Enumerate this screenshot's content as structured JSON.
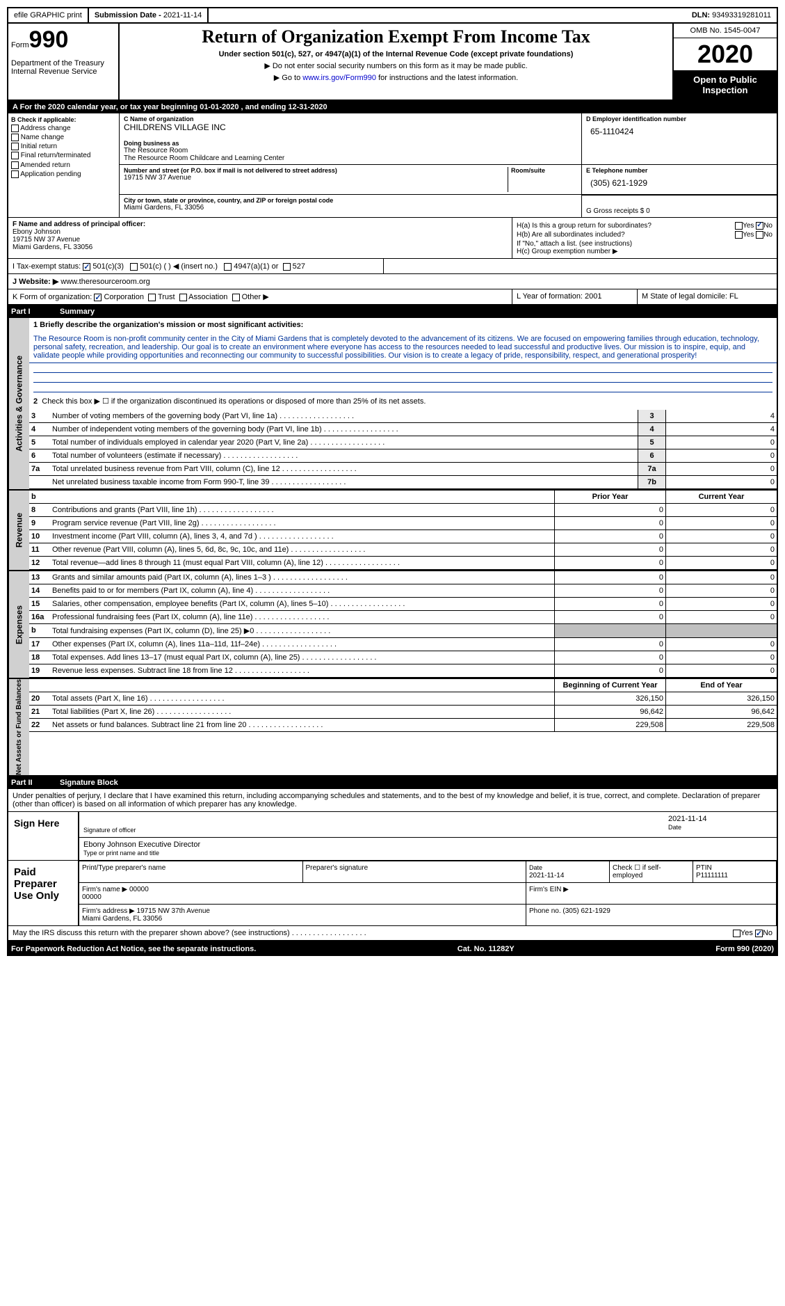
{
  "top": {
    "efile": "efile GRAPHIC print",
    "subdate_label": "Submission Date - ",
    "subdate": "2021-11-14",
    "dln_label": "DLN: ",
    "dln": "93493319281011"
  },
  "header": {
    "form_label": "Form",
    "form_num": "990",
    "dept": "Department of the Treasury\nInternal Revenue Service",
    "title": "Return of Organization Exempt From Income Tax",
    "sub": "Under section 501(c), 527, or 4947(a)(1) of the Internal Revenue Code (except private foundations)",
    "note1": "▶ Do not enter social security numbers on this form as it may be made public.",
    "note2_pre": "▶ Go to ",
    "note2_link": "www.irs.gov/Form990",
    "note2_post": " for instructions and the latest information.",
    "omb": "OMB No. 1545-0047",
    "year": "2020",
    "inspect": "Open to Public Inspection"
  },
  "a": {
    "text": "For the 2020 calendar year, or tax year beginning 01-01-2020   , and ending 12-31-2020"
  },
  "b": {
    "label": "B Check if applicable:",
    "items": [
      "Address change",
      "Name change",
      "Initial return",
      "Final return/terminated",
      "Amended return",
      "Application pending"
    ]
  },
  "c": {
    "name_label": "C Name of organization",
    "name": "CHILDRENS VILLAGE INC",
    "dba_label": "Doing business as",
    "dba1": "The Resource Room",
    "dba2": "The Resource Room Childcare and Learning Center",
    "addr_label": "Number and street (or P.O. box if mail is not delivered to street address)",
    "addr": "19715 NW 37 Avenue",
    "room_label": "Room/suite",
    "city_label": "City or town, state or province, country, and ZIP or foreign postal code",
    "city": "Miami Gardens, FL  33056"
  },
  "d": {
    "ein_label": "D Employer identification number",
    "ein": "65-1110424",
    "tel_label": "E Telephone number",
    "tel": "(305) 621-1929",
    "gross_label": "G Gross receipts $ 0"
  },
  "f": {
    "label": "F  Name and address of principal officer:",
    "name": "Ebony Johnson",
    "addr": "19715 NW 37 Avenue",
    "city": "Miami Gardens, FL  33056"
  },
  "h": {
    "a": "H(a)  Is this a group return for subordinates?",
    "b": "H(b)  Are all subordinates included?",
    "b2": "If \"No,\" attach a list. (see instructions)",
    "c": "H(c)  Group exemption number ▶"
  },
  "i": {
    "label": "I   Tax-exempt status:",
    "o1": "501(c)(3)",
    "o2": "501(c) (  ) ◀ (insert no.)",
    "o3": "4947(a)(1) or",
    "o4": "527"
  },
  "j": {
    "label": "J   Website: ▶",
    "val": "www.theresourceroom.org"
  },
  "k": {
    "label": "K Form of organization:",
    "o1": "Corporation",
    "o2": "Trust",
    "o3": "Association",
    "o4": "Other ▶",
    "l": "L Year of formation: 2001",
    "m": "M State of legal domicile: FL"
  },
  "part1": {
    "pn": "Part I",
    "title": "Summary"
  },
  "mission": {
    "label": "1   Briefly describe the organization's mission or most significant activities:",
    "text": "The Resource Room is non-profit community center in the City of Miami Gardens that is completely devoted to the advancement of its citizens. We are focused on empowering families through education, technology, personal safety, recreation, and leadership. Our goal is to create an environment where everyone has access to the resources needed to lead successful and productive lives. Our mission is to inspire, equip, and validate people while providing opportunities and reconnecting our community to successful possibilities. Our vision is to create a legacy of pride, responsibility, respect, and generational prosperity!"
  },
  "gov": {
    "side": "Activities & Governance",
    "l2": "Check this box ▶ ☐  if the organization discontinued its operations or disposed of more than 25% of its net assets.",
    "rows": [
      {
        "n": "3",
        "t": "Number of voting members of the governing body (Part VI, line 1a)",
        "c": "3",
        "v": "4"
      },
      {
        "n": "4",
        "t": "Number of independent voting members of the governing body (Part VI, line 1b)",
        "c": "4",
        "v": "4"
      },
      {
        "n": "5",
        "t": "Total number of individuals employed in calendar year 2020 (Part V, line 2a)",
        "c": "5",
        "v": "0"
      },
      {
        "n": "6",
        "t": "Total number of volunteers (estimate if necessary)",
        "c": "6",
        "v": "0"
      },
      {
        "n": "7a",
        "t": "Total unrelated business revenue from Part VIII, column (C), line 12",
        "c": "7a",
        "v": "0"
      },
      {
        "n": "",
        "t": "Net unrelated business taxable income from Form 990-T, line 39",
        "c": "7b",
        "v": "0"
      }
    ]
  },
  "rev": {
    "side": "Revenue",
    "hdr_p": "Prior Year",
    "hdr_c": "Current Year",
    "rows": [
      {
        "n": "8",
        "t": "Contributions and grants (Part VIII, line 1h)",
        "p": "0",
        "c": "0"
      },
      {
        "n": "9",
        "t": "Program service revenue (Part VIII, line 2g)",
        "p": "0",
        "c": "0"
      },
      {
        "n": "10",
        "t": "Investment income (Part VIII, column (A), lines 3, 4, and 7d )",
        "p": "0",
        "c": "0"
      },
      {
        "n": "11",
        "t": "Other revenue (Part VIII, column (A), lines 5, 6d, 8c, 9c, 10c, and 11e)",
        "p": "0",
        "c": "0"
      },
      {
        "n": "12",
        "t": "Total revenue—add lines 8 through 11 (must equal Part VIII, column (A), line 12)",
        "p": "0",
        "c": "0"
      }
    ]
  },
  "exp": {
    "side": "Expenses",
    "rows": [
      {
        "n": "13",
        "t": "Grants and similar amounts paid (Part IX, column (A), lines 1–3 )",
        "p": "0",
        "c": "0"
      },
      {
        "n": "14",
        "t": "Benefits paid to or for members (Part IX, column (A), line 4)",
        "p": "0",
        "c": "0"
      },
      {
        "n": "15",
        "t": "Salaries, other compensation, employee benefits (Part IX, column (A), lines 5–10)",
        "p": "0",
        "c": "0"
      },
      {
        "n": "16a",
        "t": "Professional fundraising fees (Part IX, column (A), line 11e)",
        "p": "0",
        "c": "0"
      },
      {
        "n": "b",
        "t": "Total fundraising expenses (Part IX, column (D), line 25) ▶0",
        "p": "",
        "c": "",
        "gray": true
      },
      {
        "n": "17",
        "t": "Other expenses (Part IX, column (A), lines 11a–11d, 11f–24e)",
        "p": "0",
        "c": "0"
      },
      {
        "n": "18",
        "t": "Total expenses. Add lines 13–17 (must equal Part IX, column (A), line 25)",
        "p": "0",
        "c": "0"
      },
      {
        "n": "19",
        "t": "Revenue less expenses. Subtract line 18 from line 12",
        "p": "0",
        "c": "0"
      }
    ]
  },
  "net": {
    "side": "Net Assets or Fund Balances",
    "hdr_p": "Beginning of Current Year",
    "hdr_c": "End of Year",
    "rows": [
      {
        "n": "20",
        "t": "Total assets (Part X, line 16)",
        "p": "326,150",
        "c": "326,150"
      },
      {
        "n": "21",
        "t": "Total liabilities (Part X, line 26)",
        "p": "96,642",
        "c": "96,642"
      },
      {
        "n": "22",
        "t": "Net assets or fund balances. Subtract line 21 from line 20",
        "p": "229,508",
        "c": "229,508"
      }
    ]
  },
  "part2": {
    "pn": "Part II",
    "title": "Signature Block"
  },
  "sig": {
    "text": "Under penalties of perjury, I declare that I have examined this return, including accompanying schedules and statements, and to the best of my knowledge and belief, it is true, correct, and complete. Declaration of preparer (other than officer) is based on all information of which preparer has any knowledge.",
    "sign_here": "Sign Here",
    "sig_label": "Signature of officer",
    "date": "2021-11-14",
    "date_label": "Date",
    "name": "Ebony Johnson  Executive Director",
    "name_label": "Type or print name and title",
    "paid": "Paid Preparer Use Only",
    "prep_name_label": "Print/Type preparer's name",
    "prep_sig_label": "Preparer's signature",
    "prep_date": "2021-11-14",
    "self_emp": "Check ☐ if self-employed",
    "ptin_label": "PTIN",
    "ptin": "P11111111",
    "firm_name_label": "Firm's name    ▶",
    "firm_name": "00000\n00000",
    "firm_ein": "Firm's EIN ▶",
    "firm_addr_label": "Firm's address ▶",
    "firm_addr": "19715 NW 37th Avenue\nMiami Gardens, FL  33056",
    "phone": "Phone no. (305) 621-1929",
    "discuss": "May the IRS discuss this return with the preparer shown above? (see instructions)"
  },
  "footer": {
    "l": "For Paperwork Reduction Act Notice, see the separate instructions.",
    "m": "Cat. No. 11282Y",
    "r": "Form 990 (2020)"
  }
}
